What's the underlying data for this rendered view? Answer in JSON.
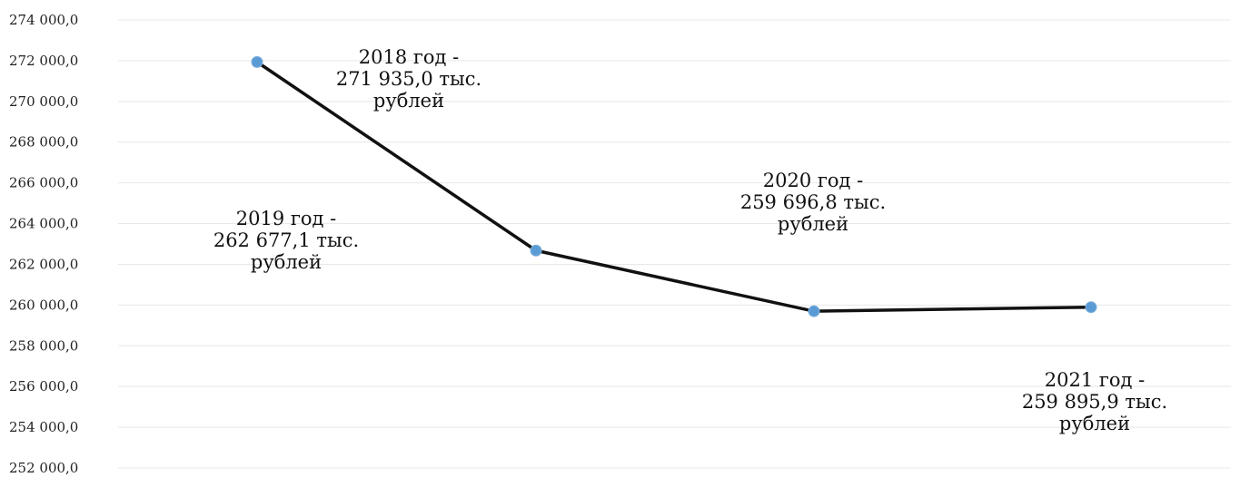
{
  "chart_data": {
    "type": "line",
    "x": [
      "2018",
      "2019",
      "2020",
      "2021"
    ],
    "series": [
      {
        "values": [
          271935.0,
          262677.1,
          259696.8,
          259895.9
        ]
      }
    ],
    "ylim": [
      252000,
      274000
    ],
    "ytick_labels": [
      "252 000,0",
      "254 000,0",
      "256 000,0",
      "258 000,0",
      "260 000,0",
      "262 000,0",
      "264 000,0",
      "266 000,0",
      "268 000,0",
      "270 000,0",
      "272 000,0",
      "274 000,0"
    ],
    "ytick_values": [
      252000,
      254000,
      256000,
      258000,
      260000,
      262000,
      264000,
      266000,
      268000,
      270000,
      272000,
      274000
    ],
    "data_labels": [
      [
        "2018 год -",
        "271 935,0 тыс.",
        "рублей"
      ],
      [
        "2019 год -",
        "262 677,1 тыс.",
        "рублей"
      ],
      [
        "2020 год -",
        "259 696,8 тыс.",
        "рублей"
      ],
      [
        "2021 год -",
        "259 895,9 тыс.",
        "рублей"
      ]
    ],
    "grid": true,
    "legend": false,
    "colors": {
      "line": "#111111",
      "marker": "#5b9bd5",
      "grid": "#e8e8e8"
    }
  }
}
